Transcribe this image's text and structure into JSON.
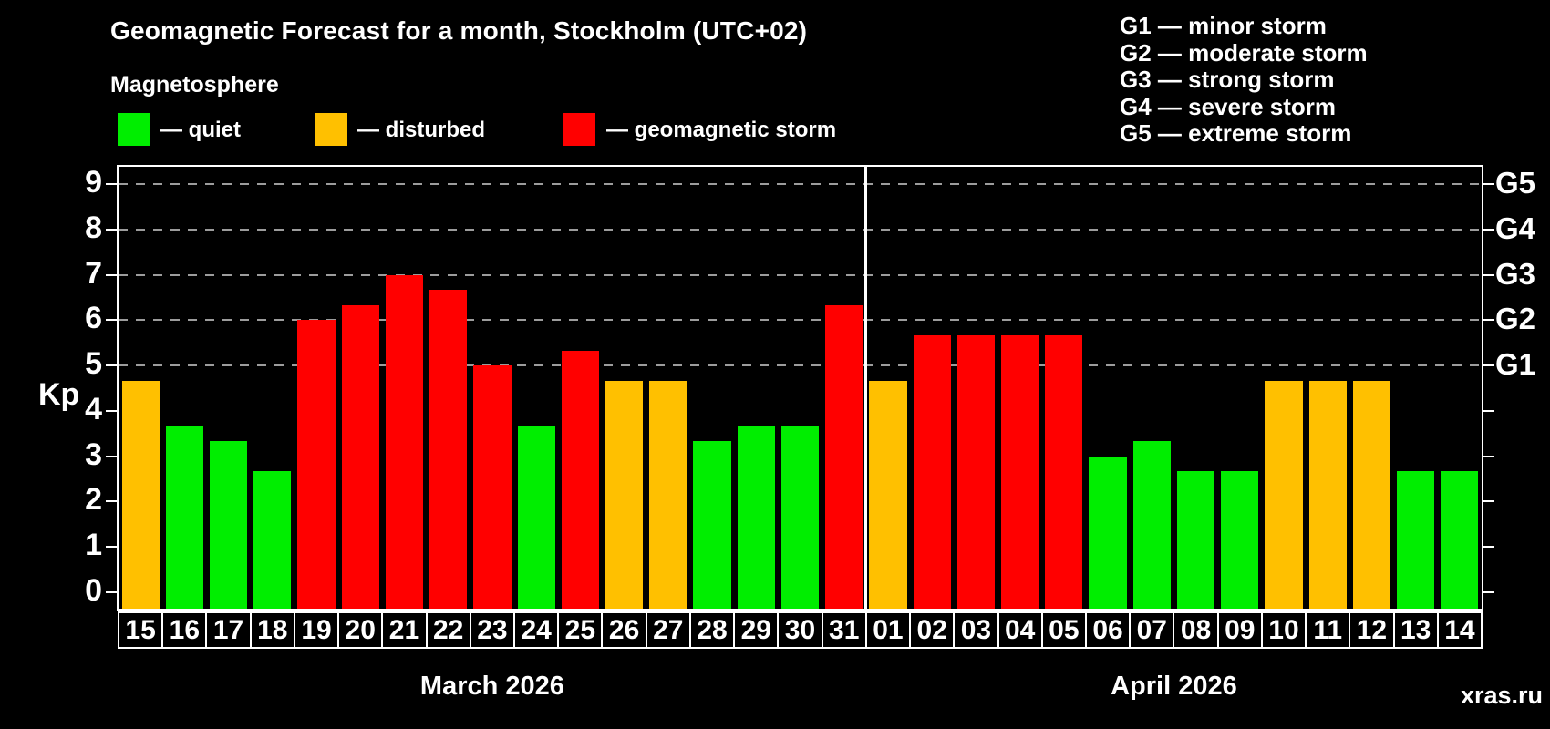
{
  "header": {
    "title": "Geomagnetic Forecast for a month, Stockholm (UTC+02)",
    "subtitle": "Magnetosphere"
  },
  "legend": {
    "items": [
      {
        "state": "quiet",
        "label": "— quiet"
      },
      {
        "state": "disturbed",
        "label": "— disturbed"
      },
      {
        "state": "storm",
        "label": "— geomagnetic storm"
      }
    ]
  },
  "g_legend": {
    "lines": [
      "G1 — minor storm",
      "G2 — moderate storm",
      "G3 — strong storm",
      "G4 — severe storm",
      "G5 — extreme storm"
    ]
  },
  "colors": {
    "quiet": "#00ee00",
    "disturbed": "#ffc000",
    "storm": "#ff0000",
    "axis": "#ffffff",
    "grid": "#9c9c9c",
    "background": "#000000",
    "watermark": "#8f8f8f"
  },
  "watermark": "xras.ru",
  "chart_data": {
    "type": "bar",
    "title": "Geomagnetic Forecast for a month, Stockholm (UTC+02)",
    "subtitle": "Magnetosphere",
    "ylabel": "Kp",
    "ylim": [
      0,
      9
    ],
    "y_ticks": [
      0,
      1,
      2,
      3,
      4,
      5,
      6,
      7,
      8,
      9
    ],
    "grid_levels": [
      5,
      6,
      7,
      8,
      9
    ],
    "grid_style": "dashed",
    "right_axis_labels": [
      {
        "label": "G1",
        "kp": 5
      },
      {
        "label": "G2",
        "kp": 6
      },
      {
        "label": "G3",
        "kp": 7
      },
      {
        "label": "G4",
        "kp": 8
      },
      {
        "label": "G5",
        "kp": 9
      }
    ],
    "series": [
      {
        "month": "March 2026",
        "days": [
          "15",
          "16",
          "17",
          "18",
          "19",
          "20",
          "21",
          "22",
          "23",
          "24",
          "25",
          "26",
          "27",
          "28",
          "29",
          "30",
          "31"
        ],
        "values": [
          4.67,
          3.67,
          3.33,
          2.67,
          6.0,
          6.33,
          7.0,
          6.67,
          5.0,
          3.67,
          5.33,
          4.67,
          4.67,
          3.33,
          3.67,
          3.67,
          6.33
        ],
        "states": [
          "disturbed",
          "quiet",
          "quiet",
          "quiet",
          "storm",
          "storm",
          "storm",
          "storm",
          "storm",
          "quiet",
          "storm",
          "disturbed",
          "disturbed",
          "quiet",
          "quiet",
          "quiet",
          "storm"
        ]
      },
      {
        "month": "April 2026",
        "days": [
          "01",
          "02",
          "03",
          "04",
          "05",
          "06",
          "07",
          "08",
          "09",
          "10",
          "11",
          "12",
          "13",
          "14"
        ],
        "values": [
          4.67,
          5.67,
          5.67,
          5.67,
          5.67,
          3.0,
          3.33,
          2.67,
          2.67,
          4.67,
          4.67,
          4.67,
          2.67,
          2.67
        ],
        "states": [
          "disturbed",
          "storm",
          "storm",
          "storm",
          "storm",
          "quiet",
          "quiet",
          "quiet",
          "quiet",
          "disturbed",
          "disturbed",
          "disturbed",
          "quiet",
          "quiet"
        ]
      }
    ]
  }
}
